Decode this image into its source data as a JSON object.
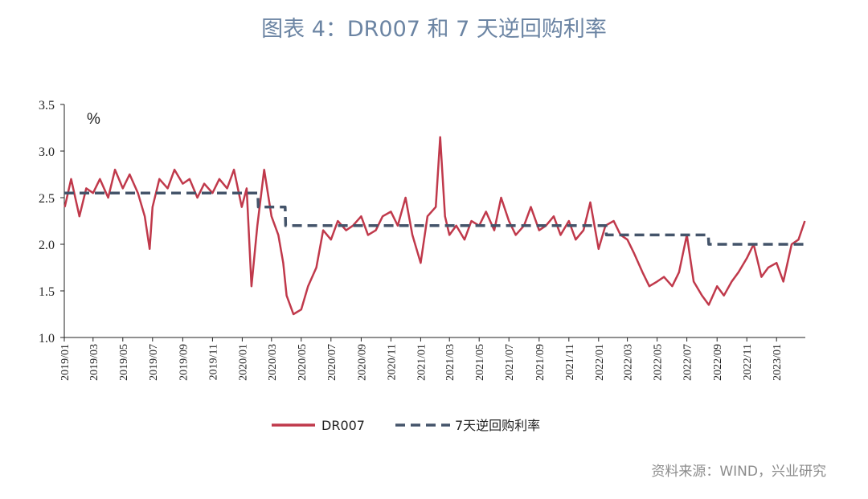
{
  "title": "图表 4：DR007 和 7 天逆回购利率",
  "source": "资料来源：WIND，兴业研究",
  "chart_data": {
    "type": "line",
    "unit_label": "%",
    "ylim": [
      1.0,
      3.5
    ],
    "yticks": [
      "1.0",
      "1.5",
      "2.0",
      "2.5",
      "3.0",
      "3.5"
    ],
    "xlim": [
      "2019-01",
      "2023-03"
    ],
    "xticks": [
      "2019/01",
      "2019/03",
      "2019/05",
      "2019/07",
      "2019/09",
      "2019/11",
      "2020/01",
      "2020/03",
      "2020/05",
      "2020/07",
      "2020/09",
      "2020/11",
      "2021/01",
      "2021/03",
      "2021/05",
      "2021/07",
      "2021/09",
      "2021/11",
      "2022/01",
      "2022/03",
      "2022/05",
      "2022/07",
      "2022/09",
      "2022/11",
      "2023/01"
    ],
    "legend_position": "bottom",
    "series": [
      {
        "name": "DR007",
        "color": "#c0394b",
        "style": "solid",
        "x": [
          "2019-01-02",
          "2019-01-15",
          "2019-02-01",
          "2019-02-15",
          "2019-03-01",
          "2019-03-15",
          "2019-04-01",
          "2019-04-15",
          "2019-05-01",
          "2019-05-15",
          "2019-06-01",
          "2019-06-15",
          "2019-06-25",
          "2019-07-01",
          "2019-07-15",
          "2019-08-01",
          "2019-08-15",
          "2019-09-01",
          "2019-09-15",
          "2019-10-01",
          "2019-10-15",
          "2019-11-01",
          "2019-11-15",
          "2019-12-01",
          "2019-12-15",
          "2019-12-31",
          "2020-01-10",
          "2020-01-20",
          "2020-02-01",
          "2020-02-15",
          "2020-03-01",
          "2020-03-15",
          "2020-03-25",
          "2020-04-01",
          "2020-04-15",
          "2020-05-01",
          "2020-05-15",
          "2020-06-01",
          "2020-06-15",
          "2020-07-01",
          "2020-07-15",
          "2020-08-01",
          "2020-08-15",
          "2020-09-01",
          "2020-09-15",
          "2020-10-01",
          "2020-10-15",
          "2020-11-01",
          "2020-11-15",
          "2020-12-01",
          "2020-12-15",
          "2021-01-01",
          "2021-01-15",
          "2021-02-01",
          "2021-02-10",
          "2021-02-20",
          "2021-03-01",
          "2021-03-15",
          "2021-04-01",
          "2021-04-15",
          "2021-05-01",
          "2021-05-15",
          "2021-06-01",
          "2021-06-15",
          "2021-07-01",
          "2021-07-15",
          "2021-08-01",
          "2021-08-15",
          "2021-09-01",
          "2021-09-15",
          "2021-10-01",
          "2021-10-15",
          "2021-11-01",
          "2021-11-15",
          "2021-12-01",
          "2021-12-15",
          "2022-01-01",
          "2022-01-15",
          "2022-02-01",
          "2022-02-15",
          "2022-03-01",
          "2022-03-15",
          "2022-04-01",
          "2022-04-15",
          "2022-05-01",
          "2022-05-15",
          "2022-06-01",
          "2022-06-15",
          "2022-07-01",
          "2022-07-15",
          "2022-08-01",
          "2022-08-15",
          "2022-09-01",
          "2022-09-15",
          "2022-10-01",
          "2022-10-15",
          "2022-11-01",
          "2022-11-15",
          "2022-12-01",
          "2022-12-15",
          "2023-01-01",
          "2023-01-15",
          "2023-02-01",
          "2023-02-15",
          "2023-02-28"
        ],
        "values": [
          2.4,
          2.7,
          2.3,
          2.6,
          2.55,
          2.7,
          2.5,
          2.8,
          2.6,
          2.75,
          2.55,
          2.3,
          1.95,
          2.4,
          2.7,
          2.6,
          2.8,
          2.65,
          2.7,
          2.5,
          2.65,
          2.55,
          2.7,
          2.6,
          2.8,
          2.4,
          2.6,
          1.55,
          2.2,
          2.8,
          2.3,
          2.1,
          1.8,
          1.45,
          1.25,
          1.3,
          1.55,
          1.75,
          2.15,
          2.05,
          2.25,
          2.15,
          2.2,
          2.3,
          2.1,
          2.15,
          2.3,
          2.35,
          2.2,
          2.5,
          2.1,
          1.8,
          2.3,
          2.4,
          3.15,
          2.3,
          2.1,
          2.2,
          2.05,
          2.25,
          2.2,
          2.35,
          2.15,
          2.5,
          2.25,
          2.1,
          2.2,
          2.4,
          2.15,
          2.2,
          2.3,
          2.1,
          2.25,
          2.05,
          2.15,
          2.45,
          1.95,
          2.2,
          2.25,
          2.1,
          2.05,
          1.9,
          1.7,
          1.55,
          1.6,
          1.65,
          1.55,
          1.7,
          2.1,
          1.6,
          1.45,
          1.35,
          1.55,
          1.45,
          1.6,
          1.7,
          1.85,
          2.0,
          1.65,
          1.75,
          1.8,
          1.6,
          2.0,
          2.05,
          2.25
        ]
      },
      {
        "name": "7天逆回购利率",
        "color": "#44546a",
        "style": "dashed",
        "x": [
          "2019-01-01",
          "2020-02-02",
          "2020-02-03",
          "2020-03-29",
          "2020-03-30",
          "2022-01-16",
          "2022-01-17",
          "2022-08-14",
          "2022-08-15",
          "2023-03-01"
        ],
        "values": [
          2.55,
          2.55,
          2.4,
          2.4,
          2.2,
          2.2,
          2.1,
          2.1,
          2.0,
          2.0
        ]
      }
    ]
  }
}
